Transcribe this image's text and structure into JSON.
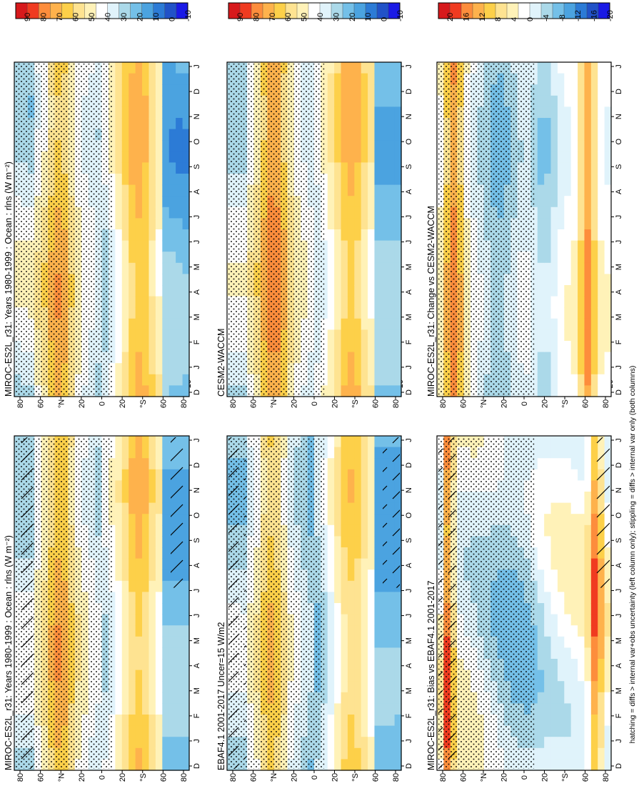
{
  "footnote": "hatching = diffs > internal var+obs uncertainty (left column only); stippling = diffs > internal var only (both columns)",
  "months": [
    "D",
    "J",
    "F",
    "M",
    "A",
    "M",
    "J",
    "J",
    "A",
    "S",
    "O",
    "N",
    "D",
    "J"
  ],
  "lat_ticks": [
    "80",
    "60",
    "°N",
    "20",
    "0",
    "20",
    "°S",
    "60",
    "80"
  ],
  "palettes": {
    "abs": [
      "#d7191c",
      "#f03b20",
      "#fd8d3c",
      "#feb24c",
      "#fdd049",
      "#fee391",
      "#fff2b8",
      "#ffffff",
      "#e0f3fb",
      "#abd9e9",
      "#74c0e8",
      "#4ba3e0",
      "#2c7bd6",
      "#2152c8",
      "#1a1ae6"
    ],
    "diff": [
      "#d7191c",
      "#f03b20",
      "#fd8d3c",
      "#feb24c",
      "#fdd049",
      "#fee391",
      "#fff2b8",
      "#ffffff",
      "#e0f3fb",
      "#abd9e9",
      "#74c0e8",
      "#4ba3e0",
      "#2c7bd6",
      "#2152c8",
      "#1a1ae6"
    ]
  },
  "chart_data": [
    {
      "type": "heatmap",
      "title": "MIROC-ES2L_r31: Years 1980-1999 : Ocean : rlns (W m⁻²)",
      "x": [
        "D",
        "J",
        "F",
        "M",
        "A",
        "M",
        "J",
        "J",
        "A",
        "S",
        "O",
        "N",
        "D",
        "J"
      ],
      "y": [
        "80°N",
        "60°N",
        "40°N",
        "20°N",
        "0",
        "20°S",
        "40°S",
        "60°S",
        "80°S"
      ],
      "colorbar": {
        "ticks": [
          "90",
          "80",
          "70",
          "60",
          "50",
          "40",
          "30",
          "20",
          "10",
          "0",
          "-10"
        ],
        "range": [
          -15,
          95
        ]
      },
      "hatching": true,
      "stippling": true
    },
    {
      "type": "heatmap",
      "title": "MIROC-ES2L_r31: Years 1980-1999 : Ocean : rlns (W m⁻²)",
      "x": [
        "D",
        "J",
        "F",
        "M",
        "A",
        "M",
        "J",
        "J",
        "A",
        "S",
        "O",
        "N",
        "D",
        "J"
      ],
      "y": [
        "80°N",
        "60°N",
        "40°N",
        "20°N",
        "0",
        "20°S",
        "40°S",
        "60°S",
        "80°S"
      ],
      "colorbar": {
        "ticks": [
          "90",
          "80",
          "70",
          "60",
          "50",
          "40",
          "30",
          "20",
          "10",
          "0",
          "-10"
        ],
        "range": [
          -15,
          95
        ]
      },
      "stippling": true
    },
    {
      "type": "heatmap",
      "title": "EBAF4.1 2001-2017 Uncer=15 W/m2",
      "x": [
        "D",
        "J",
        "F",
        "M",
        "A",
        "M",
        "J",
        "J",
        "A",
        "S",
        "O",
        "N",
        "D",
        "J"
      ],
      "y": [
        "80°N",
        "60°N",
        "40°N",
        "20°N",
        "0",
        "20°S",
        "40°S",
        "60°S",
        "80°S"
      ],
      "colorbar": {
        "ticks": [
          "90",
          "80",
          "70",
          "60",
          "50",
          "40",
          "30",
          "20",
          "10",
          "0",
          "-10"
        ],
        "range": [
          -15,
          95
        ]
      },
      "hatching": true,
      "stippling": true
    },
    {
      "type": "heatmap",
      "title": "CESM2-WACCM",
      "x": [
        "D",
        "J",
        "F",
        "M",
        "A",
        "M",
        "J",
        "J",
        "A",
        "S",
        "O",
        "N",
        "D",
        "J"
      ],
      "y": [
        "80°N",
        "60°N",
        "40°N",
        "20°N",
        "0",
        "20°S",
        "40°S",
        "60°S",
        "80°S"
      ],
      "colorbar": {
        "ticks": [
          "90",
          "80",
          "70",
          "60",
          "50",
          "40",
          "30",
          "20",
          "10",
          "0",
          "-10"
        ],
        "range": [
          -15,
          95
        ]
      },
      "stippling": true
    },
    {
      "type": "heatmap",
      "title": "MIROC-ES2L_r31: Bias vs EBAF4.1 2001-2017",
      "x": [
        "D",
        "J",
        "F",
        "M",
        "A",
        "M",
        "J",
        "J",
        "A",
        "S",
        "O",
        "N",
        "D",
        "J"
      ],
      "y": [
        "80°N",
        "60°N",
        "40°N",
        "20°N",
        "0",
        "20°S",
        "40°S",
        "60°S",
        "80°S"
      ],
      "colorbar": {
        "ticks": [
          "20",
          "16",
          "12",
          "8",
          "4",
          "0",
          "-4",
          "-8",
          "-12",
          "-16",
          "-20"
        ],
        "range": [
          -22,
          22
        ]
      },
      "hatching": true,
      "stippling": true
    },
    {
      "type": "heatmap",
      "title": "MIROC-ES2L_r31: Change vs CESM2-WACCM",
      "x": [
        "D",
        "J",
        "F",
        "M",
        "A",
        "M",
        "J",
        "J",
        "A",
        "S",
        "O",
        "N",
        "D",
        "J"
      ],
      "y": [
        "80°N",
        "60°N",
        "40°N",
        "20°N",
        "0",
        "20°S",
        "40°S",
        "60°S",
        "80°S"
      ],
      "colorbar": {
        "ticks": [
          "20",
          "16",
          "12",
          "8",
          "4",
          "0",
          "-4",
          "-8",
          "-12",
          "-16",
          "-20"
        ],
        "range": [
          -22,
          22
        ]
      },
      "stippling": true
    }
  ]
}
